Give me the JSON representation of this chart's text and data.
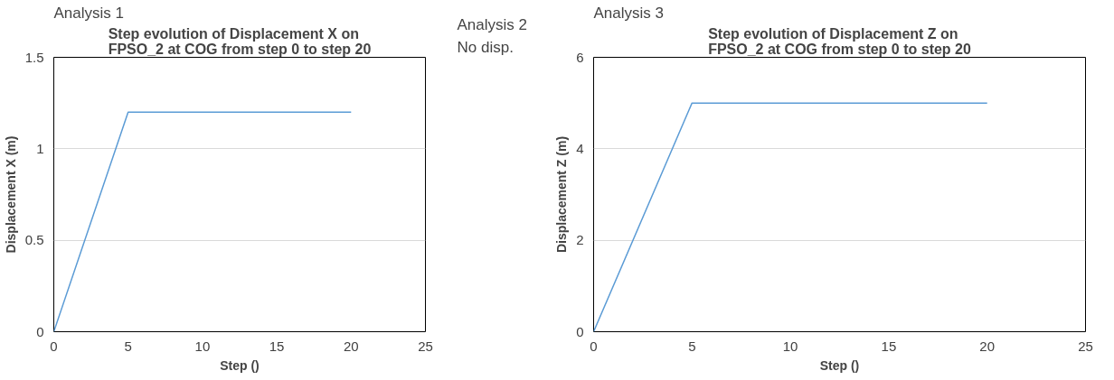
{
  "chart_data": [
    {
      "type": "line",
      "annotations": [
        "Analysis 1"
      ],
      "title": "Step evolution of Displacement X on FPSO_2 at COG from step 0 to step 20",
      "xlabel": "Step ()",
      "ylabel": "Displacement X (m)",
      "x": [
        0,
        5,
        20
      ],
      "series": [
        {
          "color": "#5b9bd5",
          "values": [
            0,
            1.2,
            1.2
          ]
        }
      ],
      "xlim": [
        0,
        25
      ],
      "xticks": [
        0,
        5,
        10,
        15,
        20,
        25
      ],
      "ylim": [
        0,
        1.5
      ],
      "yticks": [
        0,
        0.5,
        1,
        1.5
      ],
      "grid": "y",
      "marker": "none"
    },
    {
      "type": "other",
      "annotations": [
        "Analysis 2",
        "No disp."
      ]
    },
    {
      "type": "line",
      "annotations": [
        "Analysis 3"
      ],
      "title": "Step evolution of Displacement Z on FPSO_2 at COG from step 0 to step 20",
      "xlabel": "Step ()",
      "ylabel": "Displacement Z (m)",
      "x": [
        0,
        5,
        20
      ],
      "series": [
        {
          "color": "#5b9bd5",
          "values": [
            0,
            5,
            5
          ]
        }
      ],
      "xlim": [
        0,
        25
      ],
      "xticks": [
        0,
        5,
        10,
        15,
        20,
        25
      ],
      "ylim": [
        0,
        6
      ],
      "yticks": [
        0,
        2,
        4,
        6
      ],
      "grid": "y",
      "marker": "none"
    }
  ]
}
